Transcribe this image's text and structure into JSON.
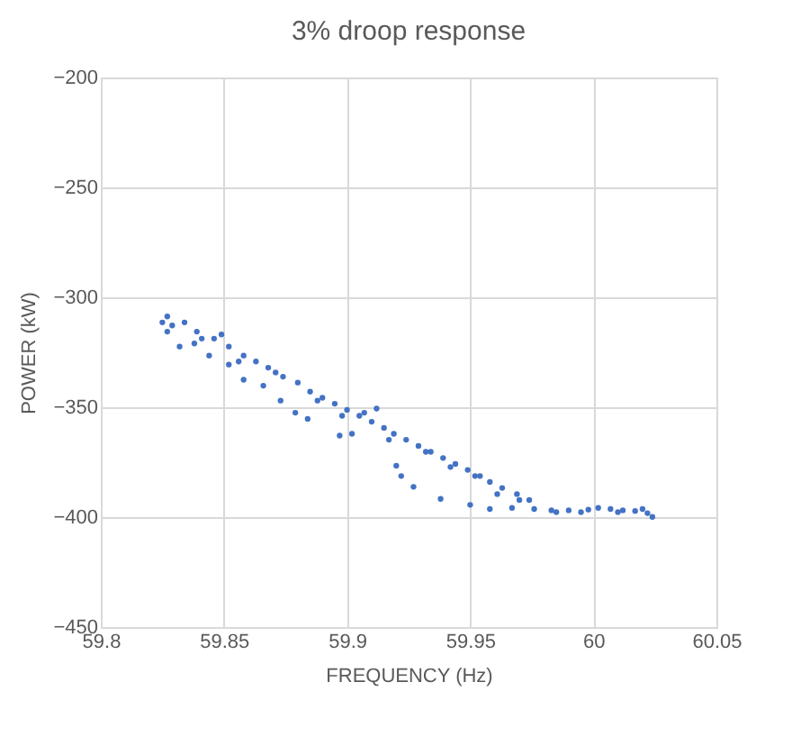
{
  "chart_data": {
    "type": "scatter",
    "title": "3% droop response",
    "xlabel": "FREQUENCY  (Hz)",
    "ylabel": "POWER (kW)",
    "xlim": [
      59.8,
      60.05
    ],
    "xticks": [
      59.8,
      59.85,
      59.9,
      59.95,
      60,
      60.05
    ],
    "ylim": [
      -450,
      -200
    ],
    "yticks": [
      -450,
      -400,
      -350,
      -300,
      -250,
      -200
    ],
    "grid": true,
    "marker": "circle",
    "legend": false,
    "series": [
      {
        "color": "#4472c4",
        "x": [
          59.825,
          59.827,
          59.829,
          59.834,
          59.839,
          59.841,
          59.849,
          59.852,
          59.858,
          59.863,
          59.868,
          59.874,
          59.88,
          59.885,
          59.89,
          59.895,
          59.9,
          59.905,
          59.91,
          59.915,
          59.919,
          59.924,
          59.929,
          59.934,
          59.939,
          59.944,
          59.949,
          59.954,
          59.958,
          59.963,
          59.969,
          59.974,
          59.976,
          59.983,
          59.99,
          59.998,
          60.002,
          60.007,
          60.012,
          60.017,
          60.022,
          60.024,
          59.832,
          59.844,
          59.852,
          59.858,
          59.866,
          59.873,
          59.879,
          59.884,
          59.897,
          59.902,
          59.912,
          59.92,
          59.922,
          59.927,
          59.938,
          59.95,
          59.958,
          59.967,
          59.827,
          59.838,
          59.846,
          59.856,
          59.871,
          59.888,
          59.898,
          59.907,
          59.917,
          59.932,
          59.942,
          59.952,
          59.961,
          59.97,
          59.985,
          59.995,
          60.01,
          60.02
        ],
        "values": [
          -311.4,
          -308.7,
          -312.8,
          -311.4,
          -315.6,
          -318.8,
          -316.9,
          -322.4,
          -326.5,
          -329.2,
          -332.0,
          -336.1,
          -338.8,
          -342.9,
          -345.7,
          -348.4,
          -351.2,
          -353.9,
          -356.6,
          -359.4,
          -362.1,
          -364.8,
          -367.6,
          -370.3,
          -373.1,
          -375.8,
          -378.5,
          -381.3,
          -384.0,
          -386.7,
          -389.5,
          -392.2,
          -396.3,
          -396.9,
          -396.9,
          -396.6,
          -395.8,
          -396.3,
          -396.9,
          -397.2,
          -398.2,
          -399.9,
          -322.4,
          -326.5,
          -330.6,
          -337.5,
          -340.2,
          -347.0,
          -352.5,
          -355.3,
          -362.9,
          -362.1,
          -350.6,
          -376.6,
          -381.3,
          -386.2,
          -391.7,
          -394.4,
          -396.3,
          -395.8,
          -315.6,
          -321.0,
          -318.8,
          -329.2,
          -334.2,
          -347.0,
          -353.9,
          -352.5,
          -364.8,
          -370.3,
          -377.2,
          -381.3,
          -389.5,
          -392.2,
          -397.7,
          -397.7,
          -397.7,
          -396.3
        ]
      }
    ]
  }
}
